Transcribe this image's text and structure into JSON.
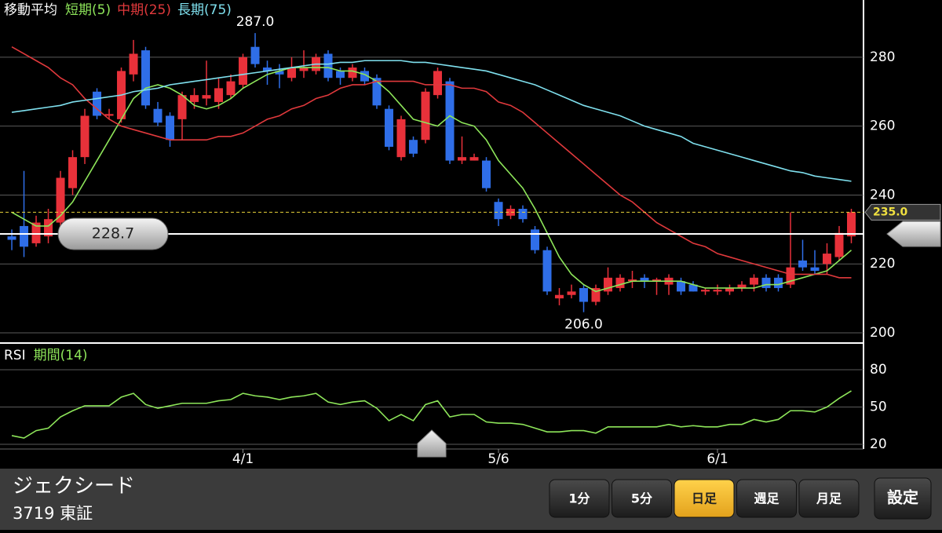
{
  "chart_data": [
    {
      "type": "candlestick",
      "legend_title": "移動平均",
      "open": [
        228,
        231,
        226,
        228,
        232,
        242,
        251,
        270,
        263,
        262,
        275,
        282,
        265,
        263,
        262,
        267,
        268,
        267,
        269,
        272,
        283,
        277,
        276,
        274,
        276,
        276,
        281,
        276,
        274,
        276,
        274,
        265,
        251,
        256,
        256,
        269,
        273,
        250,
        250,
        250,
        238,
        234,
        236,
        230,
        224,
        210,
        211,
        213,
        209,
        212,
        213,
        215,
        216,
        215,
        214,
        215,
        214,
        212,
        212,
        212,
        213,
        214,
        216,
        216,
        214,
        221,
        219,
        220,
        222,
        228
      ],
      "high": [
        230,
        247,
        234,
        236,
        247,
        253,
        265,
        271,
        265,
        277,
        285,
        283,
        267,
        264,
        270,
        271,
        279,
        274,
        275,
        281,
        287,
        279,
        278,
        280,
        282,
        281,
        282,
        277,
        278,
        277,
        275,
        266,
        263,
        257,
        271,
        277,
        274,
        257,
        252,
        251,
        239,
        237,
        237,
        231,
        225,
        213,
        214,
        214,
        214,
        219,
        217,
        218,
        217,
        216,
        217,
        216,
        215,
        213,
        214,
        214,
        215,
        217,
        217,
        217,
        235,
        227,
        224,
        226,
        231,
        236
      ],
      "low": [
        224,
        222,
        225,
        226,
        230,
        240,
        249,
        262,
        262,
        261,
        273,
        265,
        260,
        254,
        256,
        265,
        266,
        265,
        268,
        271,
        277,
        272,
        271,
        273,
        274,
        275,
        273,
        272,
        273,
        272,
        265,
        253,
        250,
        251,
        255,
        268,
        249,
        249,
        250,
        241,
        231,
        233,
        232,
        223,
        211,
        208,
        210,
        206,
        208,
        211,
        212,
        213,
        213,
        211,
        211,
        211,
        212,
        211,
        211,
        211,
        212,
        212,
        212,
        212,
        213,
        218,
        217,
        217,
        221,
        226
      ],
      "close": [
        227,
        225,
        232,
        233,
        245,
        251,
        263,
        263,
        263.5,
        276,
        281,
        266,
        261,
        256,
        269,
        269,
        269,
        271,
        273,
        280,
        278,
        276,
        275,
        277,
        277,
        280,
        274,
        274,
        277,
        273,
        266,
        254,
        262,
        252,
        270,
        276,
        250,
        251,
        251,
        242,
        233,
        236,
        233,
        224,
        212,
        211,
        212,
        209,
        213,
        216,
        216,
        215.5,
        215,
        215.5,
        216,
        212,
        212,
        212.5,
        212.5,
        213,
        214,
        216,
        213,
        213,
        219,
        219,
        218,
        223,
        229,
        235
      ],
      "up_color": "#e8313a",
      "down_color": "#2f6ee8",
      "series": [
        {
          "name": "短期(5)",
          "color": "#8ee65a",
          "values": [
            235,
            233,
            231,
            231,
            234,
            238,
            244,
            250,
            256,
            262,
            268,
            271,
            272,
            271,
            269,
            266,
            265,
            266,
            268,
            271,
            273,
            275,
            276,
            277,
            277,
            277,
            277,
            276,
            276,
            275,
            273,
            270,
            266,
            262,
            261,
            260,
            263,
            261,
            260,
            256,
            250,
            246,
            242,
            236,
            229,
            222,
            217,
            214,
            212,
            213,
            214,
            215,
            215,
            215,
            215,
            215,
            214,
            213,
            213,
            213,
            213,
            213,
            214,
            214,
            215,
            216,
            217,
            218,
            221,
            224
          ]
        },
        {
          "name": "中期(25)",
          "color": "#e0393c",
          "values": [
            283,
            281,
            279,
            277,
            274,
            272,
            268,
            265,
            262,
            260,
            259,
            258,
            257,
            256,
            256,
            256,
            256,
            257,
            257,
            258,
            260,
            262,
            263,
            265,
            266,
            268,
            269,
            271,
            272,
            272,
            273,
            273,
            273,
            273,
            272,
            272,
            272,
            271,
            271,
            270,
            267,
            266,
            264,
            261,
            258,
            255,
            252,
            249,
            246,
            243,
            240,
            238,
            235,
            232,
            230,
            228,
            226,
            225,
            223,
            222,
            221,
            220,
            219,
            218,
            217,
            217,
            217,
            217,
            216,
            216
          ]
        },
        {
          "name": "長期(75)",
          "color": "#7fe0ee",
          "values": [
            264,
            264.5,
            265,
            265.5,
            266,
            267,
            267.5,
            268,
            268.5,
            269,
            270,
            270.5,
            271,
            272,
            272.5,
            273,
            273.5,
            274,
            274.5,
            275,
            275.5,
            276,
            276.5,
            277,
            277.5,
            278,
            278,
            278.5,
            278.5,
            279,
            279,
            279,
            279,
            278.5,
            278.5,
            278,
            277.5,
            277,
            276.5,
            276,
            275,
            274,
            273,
            272,
            270.5,
            269,
            267.5,
            266,
            265,
            264,
            263,
            261.5,
            260,
            259,
            258,
            257,
            255,
            254,
            253,
            252,
            251,
            250,
            249,
            248,
            247,
            246.5,
            245.5,
            245,
            244.5,
            244
          ]
        }
      ],
      "xlim": [
        -0.97,
        70
      ],
      "ylim": [
        197.5,
        296.6
      ],
      "yticks": [
        200,
        220,
        240,
        260,
        280
      ],
      "grid": true,
      "annotations": [
        {
          "value": 287,
          "label": "287.0"
        },
        {
          "value": 206,
          "label": "206.0"
        }
      ],
      "last_price": {
        "value": 235,
        "label": "235.0"
      },
      "cursor": {
        "value": 228.7,
        "label": "228.7"
      }
    },
    {
      "type": "line",
      "legend_title": "RSI",
      "series": [
        {
          "name": "期間(14)",
          "color": "#8ee65a",
          "values": [
            27,
            25,
            31,
            33,
            42,
            47,
            51,
            51,
            51,
            58,
            61,
            52,
            49,
            51,
            53,
            53,
            53,
            55,
            56,
            61,
            59,
            58,
            56,
            58,
            59,
            61,
            54,
            52,
            54,
            55,
            49,
            39,
            44,
            39,
            52,
            55,
            42,
            44,
            44,
            38,
            37,
            37,
            36,
            33,
            30,
            30,
            31,
            31,
            29,
            34,
            34,
            34,
            34,
            34,
            36,
            34,
            35,
            34,
            34,
            36,
            36,
            40,
            38,
            40,
            47,
            47,
            46,
            50,
            57,
            63
          ]
        }
      ],
      "xlim": [
        -0.97,
        70
      ],
      "xticks": [
        {
          "value": 19,
          "label": "4/1"
        },
        {
          "value": 40,
          "label": "5/6"
        },
        {
          "value": 58,
          "label": "6/1"
        }
      ],
      "ylim": [
        16.2,
        99.6
      ],
      "yticks": [
        20,
        50,
        80
      ],
      "grid": true
    }
  ],
  "stock": {
    "name": "ジェクシード",
    "code": "3719 東証"
  },
  "buttons": [
    "1分",
    "5分",
    "日足",
    "週足",
    "月足"
  ],
  "active_button": 2,
  "settings": "設定"
}
